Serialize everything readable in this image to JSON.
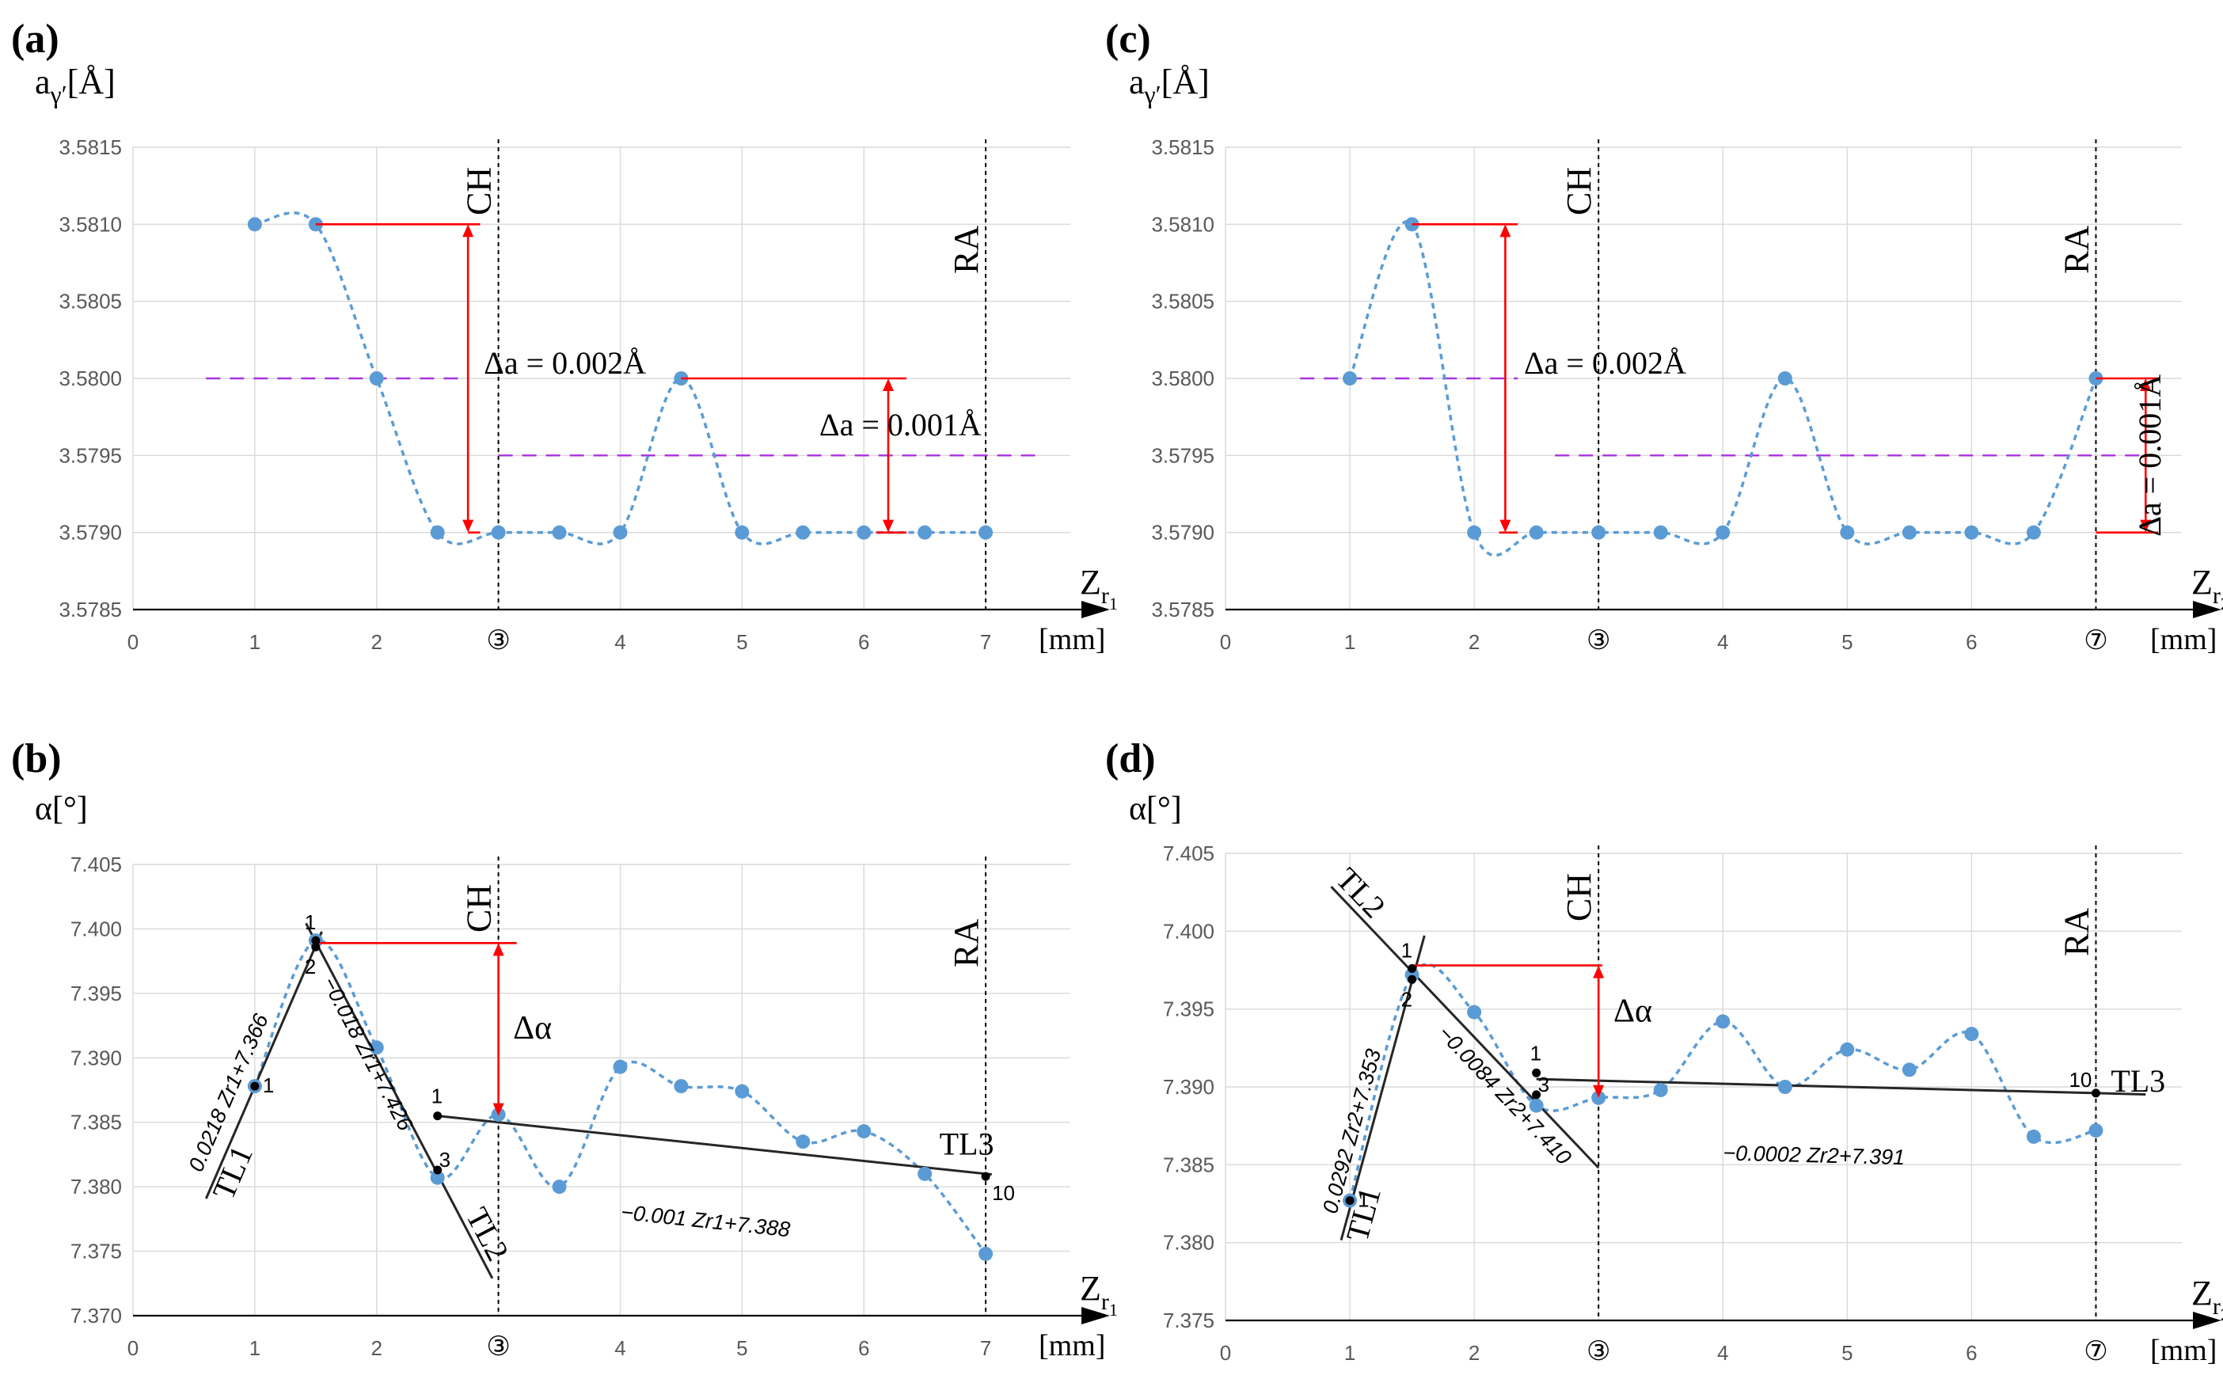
{
  "chart_data": [
    {
      "panel": "(a)",
      "type": "line",
      "ylabel": "a",
      "ylabel_sub": "γ′",
      "ylabel_unit": "[Å]",
      "xlabel": "Z",
      "xlabel_sub": "r",
      "xlabel_subsub": "1",
      "xunit": "[mm]",
      "yticks": [
        "3.5785",
        "3.5790",
        "3.5795",
        "3.5800",
        "3.5805",
        "3.5810",
        "3.5815"
      ],
      "ylim": [
        3.5785,
        3.5815
      ],
      "xticks": [
        "0",
        "1",
        "2",
        "③",
        "4",
        "5",
        "6",
        "7"
      ],
      "xlim": [
        0,
        7.5
      ],
      "x": [
        1,
        1.5,
        2,
        2.5,
        3,
        3.5,
        4,
        4.5,
        5,
        5.5,
        6,
        6.5,
        7
      ],
      "values": [
        3.581,
        3.581,
        3.58,
        3.579,
        3.579,
        3.579,
        3.579,
        3.58,
        3.579,
        3.579,
        3.579,
        3.579,
        3.579
      ],
      "markers": [
        {
          "label": "CH",
          "x": 3
        },
        {
          "label": "RA",
          "x": 7
        }
      ],
      "averages": [
        {
          "y": 3.58,
          "x0": 0.6,
          "x1": 2.7
        },
        {
          "y": 3.5795,
          "x0": 3,
          "x1": 7.45
        }
      ],
      "deltas": [
        {
          "label": "Δa = 0.002Å",
          "x": 2.75,
          "y_top": 3.581,
          "y_bottom": 3.579,
          "h_top": [
            1.5,
            2.85
          ],
          "h_bottom": [
            2.75,
            2.85
          ],
          "text_x": 2.88,
          "text_y": 3.58
        },
        {
          "label": "Δa = 0.001Å",
          "x": 6.2,
          "y_top": 3.58,
          "y_bottom": 3.579,
          "h_top": [
            4.5,
            6.35
          ],
          "h_bottom": [
            6.1,
            6.35
          ],
          "text_x": 6.3,
          "text_y": 3.5796
        }
      ]
    },
    {
      "panel": "(b)",
      "type": "line",
      "ylabel": "α[°]",
      "xlabel": "Z",
      "xlabel_sub": "r",
      "xlabel_subsub": "1",
      "xunit": "[mm]",
      "yticks": [
        "7.370",
        "7.375",
        "7.380",
        "7.385",
        "7.390",
        "7.395",
        "7.400",
        "7.405"
      ],
      "ylim": [
        7.37,
        7.405
      ],
      "xticks": [
        "0",
        "1",
        "2",
        "③",
        "4",
        "5",
        "6",
        "7"
      ],
      "xlim": [
        0,
        7.5
      ],
      "x": [
        1,
        1.5,
        2,
        2.5,
        3,
        3.5,
        4,
        4.5,
        5,
        5.5,
        6,
        6.5,
        7
      ],
      "values": [
        7.3878,
        7.3991,
        7.3908,
        7.3807,
        7.3856,
        7.38,
        7.3893,
        7.3878,
        7.3874,
        7.3835,
        7.3843,
        7.381,
        7.3748
      ],
      "markers": [
        {
          "label": "CH",
          "x": 3
        },
        {
          "label": "RA",
          "x": 7
        }
      ],
      "trendlines": [
        {
          "name": "TL1",
          "equation": "0.0218 Zr1+7.366",
          "slope": 0.0218,
          "intercept": 7.366,
          "x0": 0.6,
          "x1": 1.55
        },
        {
          "name": "TL2",
          "equation": "−0.018 Zr1+7.426",
          "slope": -0.018,
          "intercept": 7.426,
          "x0": 1.42,
          "x1": 2.95
        },
        {
          "name": "TL3",
          "equation": "−0.001 Zr1+7.388",
          "slope": -0.001,
          "intercept": 7.388,
          "x0": 2.5,
          "x1": 7.05
        }
      ],
      "point_labels": [
        {
          "text": "1",
          "x": 1,
          "y": 7.3878
        },
        {
          "text": "1",
          "x": 1.5,
          "y": 7.3991
        },
        {
          "text": "2",
          "x": 1.5,
          "y": 7.3986
        },
        {
          "text": "3",
          "x": 2.5,
          "y": 7.3813
        },
        {
          "text": "1",
          "x": 2.5,
          "y": 7.3855
        },
        {
          "text": "10",
          "x": 7,
          "y": 7.3808
        }
      ],
      "delta": {
        "label": "Δα",
        "x": 3,
        "y_top": 7.3989,
        "y_bottom": 7.3855,
        "h_top": [
          1.5,
          3.15
        ],
        "text_x": 3.12,
        "text_y": 7.3915
      }
    },
    {
      "panel": "(c)",
      "type": "line",
      "ylabel": "a",
      "ylabel_sub": "γ′",
      "ylabel_unit": "[Å]",
      "xlabel": "Z",
      "xlabel_sub": "r",
      "xlabel_subsub": "2",
      "xunit": "[mm]",
      "yticks": [
        "3.5785",
        "3.5790",
        "3.5795",
        "3.5800",
        "3.5805",
        "3.5810",
        "3.5815"
      ],
      "ylim": [
        3.5785,
        3.5815
      ],
      "xticks": [
        "0",
        "1",
        "2",
        "③",
        "4",
        "5",
        "6",
        "⑦"
      ],
      "xlim": [
        0,
        7.5
      ],
      "x": [
        1,
        1.5,
        2,
        2.5,
        3,
        3.5,
        4,
        4.5,
        5,
        5.5,
        6,
        6.5,
        7
      ],
      "values": [
        3.58,
        3.581,
        3.579,
        3.579,
        3.579,
        3.579,
        3.579,
        3.58,
        3.579,
        3.579,
        3.579,
        3.579,
        3.58
      ],
      "markers": [
        {
          "label": "CH",
          "x": 3
        },
        {
          "label": "RA",
          "x": 7
        }
      ],
      "averages": [
        {
          "y": 3.58,
          "x0": 0.6,
          "x1": 2.35
        },
        {
          "y": 3.5795,
          "x0": 2.65,
          "x1": 7.45
        }
      ],
      "deltas": [
        {
          "label": "Δa = 0.002Å",
          "x": 2.25,
          "y_top": 3.581,
          "y_bottom": 3.579,
          "h_top": [
            1.5,
            2.35
          ],
          "h_bottom": [
            2.2,
            2.35
          ],
          "text_x": 2.4,
          "text_y": 3.58
        },
        {
          "label": "Δa = 0.001Å",
          "x": 7.4,
          "y_top": 3.58,
          "y_bottom": 3.579,
          "h_top": [
            7,
            7.5
          ],
          "h_bottom": [
            7,
            7.5
          ],
          "text_x": 7.52,
          "text_y": 3.5795
        }
      ]
    },
    {
      "panel": "(d)",
      "type": "line",
      "ylabel": "α[°]",
      "xlabel": "Z",
      "xlabel_sub": "r",
      "xlabel_subsub": "2",
      "xunit": "[mm]",
      "yticks": [
        "7.375",
        "7.380",
        "7.385",
        "7.390",
        "7.395",
        "7.400",
        "7.405"
      ],
      "ylim": [
        7.375,
        7.405
      ],
      "xticks": [
        "0",
        "1",
        "2",
        "③",
        "4",
        "5",
        "6",
        "⑦"
      ],
      "xlim": [
        0,
        7.5
      ],
      "x": [
        1,
        1.5,
        2,
        2.5,
        3,
        3.5,
        4,
        4.5,
        5,
        5.5,
        6,
        6.5,
        7
      ],
      "values": [
        7.3827,
        7.3972,
        7.3948,
        7.3888,
        7.3893,
        7.3898,
        7.3942,
        7.39,
        7.3924,
        7.3911,
        7.3934,
        7.3868,
        7.3872
      ],
      "markers": [
        {
          "label": "CH",
          "x": 3
        },
        {
          "label": "RA",
          "x": 7
        }
      ],
      "trendlines": [
        {
          "name": "TL1",
          "equation": "0.0292 Zr2+7.353",
          "slope": 0.0292,
          "intercept": 7.353,
          "x0": 0.93,
          "x1": 1.6
        },
        {
          "name": "TL2",
          "equation": "−0.0084 Zr2+7.410",
          "slope": -0.0084,
          "intercept": 7.41,
          "x0": 0.85,
          "x1": 3.0
        },
        {
          "name": "TL3",
          "equation": "−0.0002 Zr2+7.391",
          "slope": -0.0002,
          "intercept": 7.391,
          "x0": 2.5,
          "x1": 7.4
        }
      ],
      "point_labels": [
        {
          "text": "1",
          "x": 1,
          "y": 7.3827
        },
        {
          "text": "1",
          "x": 1.5,
          "y": 7.3976
        },
        {
          "text": "2",
          "x": 1.5,
          "y": 7.3969
        },
        {
          "text": "3",
          "x": 2.5,
          "y": 7.3895
        },
        {
          "text": "1",
          "x": 2.5,
          "y": 7.3909
        },
        {
          "text": "10",
          "x": 7,
          "y": 7.3896
        }
      ],
      "delta": {
        "label": "Δα",
        "x": 3,
        "y_top": 7.3978,
        "y_bottom": 7.3893,
        "h_top": [
          1.5,
          3.03
        ],
        "text_x": 3.12,
        "text_y": 7.3942
      }
    }
  ]
}
